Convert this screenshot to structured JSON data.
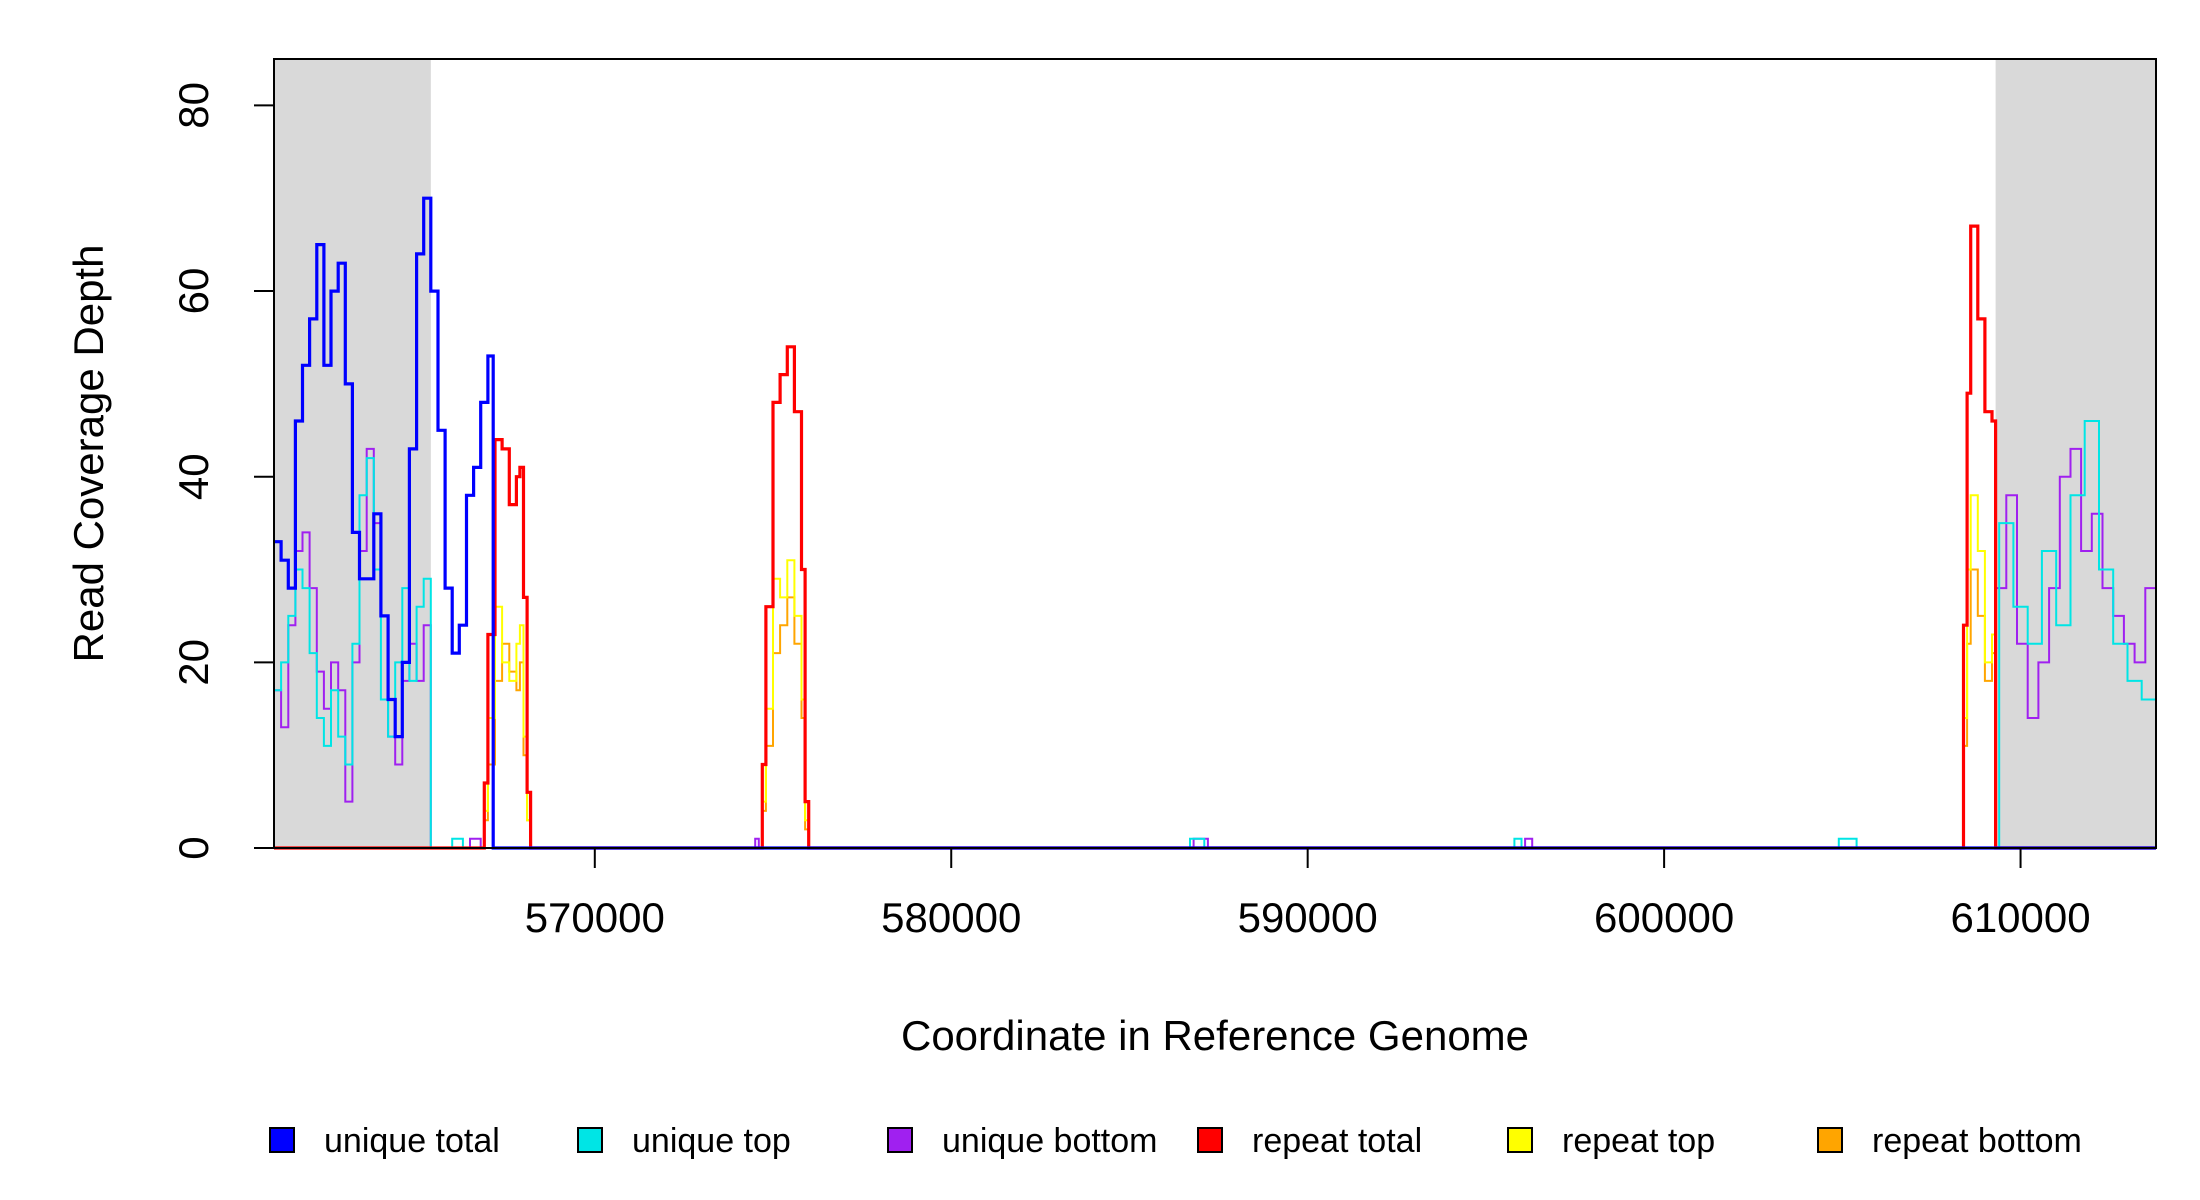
{
  "chart_data": {
    "type": "line",
    "xlabel": "Coordinate in Reference Genome",
    "ylabel": "Read Coverage Depth",
    "xlim": [
      561000,
      613800
    ],
    "ylim": [
      0,
      85
    ],
    "x_ticks": [
      570000,
      580000,
      590000,
      600000,
      610000
    ],
    "x_tick_labels": [
      "570000",
      "580000",
      "590000",
      "600000",
      "610000"
    ],
    "y_ticks": [
      0,
      20,
      40,
      60,
      80
    ],
    "y_tick_labels": [
      "0",
      "20",
      "40",
      "60",
      "80"
    ],
    "shaded_regions": [
      [
        561000,
        565400
      ],
      [
        609300,
        613800
      ]
    ],
    "shade_color": "#d9d9d9",
    "grid": false,
    "legend_position": "bottom",
    "series": [
      {
        "name": "unique total",
        "color": "#0000ff",
        "points": [
          [
            561000,
            33
          ],
          [
            561200,
            31
          ],
          [
            561400,
            28
          ],
          [
            561600,
            46
          ],
          [
            561800,
            52
          ],
          [
            562000,
            57
          ],
          [
            562200,
            65
          ],
          [
            562400,
            52
          ],
          [
            562600,
            60
          ],
          [
            562800,
            63
          ],
          [
            563000,
            50
          ],
          [
            563200,
            34
          ],
          [
            563400,
            29
          ],
          [
            563600,
            29
          ],
          [
            563800,
            36
          ],
          [
            564000,
            25
          ],
          [
            564200,
            16
          ],
          [
            564400,
            12
          ],
          [
            564600,
            20
          ],
          [
            564800,
            43
          ],
          [
            565000,
            64
          ],
          [
            565200,
            70
          ],
          [
            565400,
            60
          ],
          [
            565600,
            45
          ],
          [
            565800,
            28
          ],
          [
            566000,
            21
          ],
          [
            566200,
            24
          ],
          [
            566400,
            38
          ],
          [
            566600,
            41
          ],
          [
            566800,
            48
          ],
          [
            567000,
            53
          ],
          [
            567150,
            0
          ],
          [
            613800,
            0
          ]
        ]
      },
      {
        "name": "unique top",
        "color": "#00e5e5",
        "points": [
          [
            561000,
            17
          ],
          [
            561200,
            20
          ],
          [
            561400,
            25
          ],
          [
            561600,
            30
          ],
          [
            561800,
            28
          ],
          [
            562000,
            21
          ],
          [
            562200,
            14
          ],
          [
            562400,
            11
          ],
          [
            562600,
            17
          ],
          [
            562800,
            12
          ],
          [
            563000,
            9
          ],
          [
            563200,
            22
          ],
          [
            563400,
            38
          ],
          [
            563600,
            42
          ],
          [
            563800,
            30
          ],
          [
            564000,
            16
          ],
          [
            564200,
            12
          ],
          [
            564400,
            20
          ],
          [
            564600,
            28
          ],
          [
            564800,
            18
          ],
          [
            565000,
            26
          ],
          [
            565200,
            29
          ],
          [
            565400,
            0
          ],
          [
            565900,
            0
          ],
          [
            566000,
            1
          ],
          [
            566200,
            1
          ],
          [
            566300,
            0
          ],
          [
            586600,
            0
          ],
          [
            586700,
            1
          ],
          [
            587000,
            1
          ],
          [
            587100,
            0
          ],
          [
            595700,
            0
          ],
          [
            595800,
            1
          ],
          [
            596000,
            0
          ],
          [
            604800,
            0
          ],
          [
            604900,
            1
          ],
          [
            605300,
            1
          ],
          [
            605400,
            0
          ],
          [
            609300,
            0
          ],
          [
            609400,
            35
          ],
          [
            609800,
            26
          ],
          [
            610200,
            22
          ],
          [
            610600,
            32
          ],
          [
            611000,
            24
          ],
          [
            611400,
            38
          ],
          [
            611800,
            46
          ],
          [
            612200,
            30
          ],
          [
            612600,
            22
          ],
          [
            613000,
            18
          ],
          [
            613400,
            16
          ],
          [
            613800,
            34
          ]
        ]
      },
      {
        "name": "unique bottom",
        "color": "#a020f0",
        "points": [
          [
            561000,
            17
          ],
          [
            561200,
            13
          ],
          [
            561400,
            24
          ],
          [
            561600,
            32
          ],
          [
            561800,
            34
          ],
          [
            562000,
            28
          ],
          [
            562200,
            19
          ],
          [
            562400,
            15
          ],
          [
            562600,
            20
          ],
          [
            562800,
            17
          ],
          [
            563000,
            5
          ],
          [
            563200,
            20
          ],
          [
            563400,
            32
          ],
          [
            563600,
            43
          ],
          [
            563800,
            35
          ],
          [
            564000,
            25
          ],
          [
            564200,
            12
          ],
          [
            564400,
            9
          ],
          [
            564600,
            18
          ],
          [
            564800,
            22
          ],
          [
            565000,
            18
          ],
          [
            565200,
            24
          ],
          [
            565400,
            0
          ],
          [
            566400,
            0
          ],
          [
            566500,
            1
          ],
          [
            566700,
            1
          ],
          [
            566800,
            0
          ],
          [
            574400,
            0
          ],
          [
            574500,
            1
          ],
          [
            574600,
            0
          ],
          [
            586700,
            0
          ],
          [
            586800,
            1
          ],
          [
            587100,
            1
          ],
          [
            587200,
            0
          ],
          [
            596000,
            0
          ],
          [
            596100,
            1
          ],
          [
            596300,
            0
          ],
          [
            609200,
            0
          ],
          [
            609300,
            28
          ],
          [
            609600,
            38
          ],
          [
            609900,
            22
          ],
          [
            610200,
            14
          ],
          [
            610500,
            20
          ],
          [
            610800,
            28
          ],
          [
            611100,
            40
          ],
          [
            611400,
            43
          ],
          [
            611700,
            32
          ],
          [
            612000,
            36
          ],
          [
            612300,
            28
          ],
          [
            612600,
            25
          ],
          [
            612900,
            22
          ],
          [
            613200,
            20
          ],
          [
            613500,
            28
          ],
          [
            613800,
            31
          ]
        ]
      },
      {
        "name": "repeat total",
        "color": "#ff0000",
        "points": [
          [
            561000,
            0
          ],
          [
            566800,
            0
          ],
          [
            566900,
            7
          ],
          [
            567000,
            23
          ],
          [
            567200,
            44
          ],
          [
            567400,
            43
          ],
          [
            567600,
            37
          ],
          [
            567800,
            40
          ],
          [
            567900,
            41
          ],
          [
            568000,
            27
          ],
          [
            568100,
            6
          ],
          [
            568200,
            0
          ],
          [
            574600,
            0
          ],
          [
            574700,
            9
          ],
          [
            574800,
            26
          ],
          [
            575000,
            48
          ],
          [
            575200,
            51
          ],
          [
            575400,
            54
          ],
          [
            575600,
            47
          ],
          [
            575800,
            30
          ],
          [
            575900,
            5
          ],
          [
            576000,
            0
          ],
          [
            608300,
            0
          ],
          [
            608400,
            24
          ],
          [
            608500,
            49
          ],
          [
            608600,
            67
          ],
          [
            608800,
            57
          ],
          [
            609000,
            47
          ],
          [
            609200,
            46
          ],
          [
            609300,
            0
          ],
          [
            613800,
            0
          ]
        ]
      },
      {
        "name": "repeat top",
        "color": "#ffff00",
        "points": [
          [
            561000,
            0
          ],
          [
            566800,
            0
          ],
          [
            566900,
            4
          ],
          [
            567000,
            14
          ],
          [
            567200,
            26
          ],
          [
            567400,
            20
          ],
          [
            567600,
            18
          ],
          [
            567800,
            22
          ],
          [
            567900,
            24
          ],
          [
            568000,
            12
          ],
          [
            568100,
            3
          ],
          [
            568200,
            0
          ],
          [
            574600,
            0
          ],
          [
            574700,
            5
          ],
          [
            574800,
            15
          ],
          [
            575000,
            29
          ],
          [
            575200,
            27
          ],
          [
            575400,
            31
          ],
          [
            575600,
            25
          ],
          [
            575800,
            16
          ],
          [
            575900,
            3
          ],
          [
            576000,
            0
          ],
          [
            608300,
            0
          ],
          [
            608400,
            14
          ],
          [
            608500,
            30
          ],
          [
            608600,
            38
          ],
          [
            608800,
            32
          ],
          [
            609000,
            20
          ],
          [
            609200,
            23
          ],
          [
            609300,
            0
          ],
          [
            613800,
            0
          ]
        ]
      },
      {
        "name": "repeat bottom",
        "color": "#ffa500",
        "points": [
          [
            561000,
            0
          ],
          [
            566800,
            0
          ],
          [
            566900,
            3
          ],
          [
            567000,
            9
          ],
          [
            567200,
            18
          ],
          [
            567400,
            22
          ],
          [
            567600,
            19
          ],
          [
            567800,
            17
          ],
          [
            567900,
            20
          ],
          [
            568000,
            10
          ],
          [
            568100,
            3
          ],
          [
            568200,
            0
          ],
          [
            574600,
            0
          ],
          [
            574700,
            4
          ],
          [
            574800,
            11
          ],
          [
            575000,
            21
          ],
          [
            575200,
            24
          ],
          [
            575400,
            27
          ],
          [
            575600,
            22
          ],
          [
            575800,
            14
          ],
          [
            575900,
            2
          ],
          [
            576000,
            0
          ],
          [
            608300,
            0
          ],
          [
            608400,
            11
          ],
          [
            608500,
            22
          ],
          [
            608600,
            30
          ],
          [
            608800,
            25
          ],
          [
            609000,
            18
          ],
          [
            609200,
            21
          ],
          [
            609300,
            0
          ],
          [
            613800,
            0
          ]
        ]
      }
    ]
  }
}
